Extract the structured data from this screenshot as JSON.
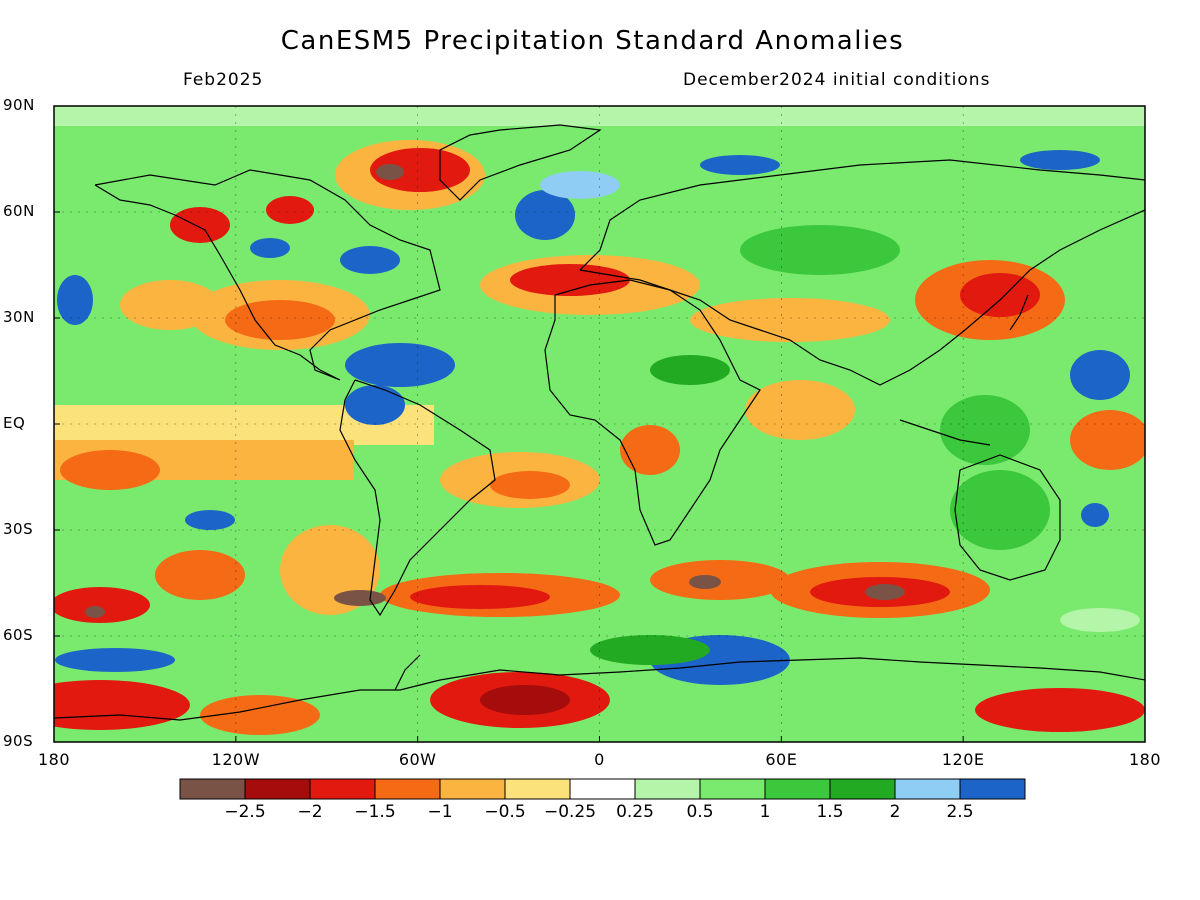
{
  "header": {
    "title": "CanESM5 Precipitation Standard Anomalies",
    "valid_month": "Feb2025",
    "init_conditions": "December2024 initial conditions"
  },
  "axes": {
    "lat_ticks": [
      "90N",
      "60N",
      "30N",
      "EQ",
      "30S",
      "60S",
      "90S"
    ],
    "lat_values": [
      90,
      60,
      30,
      0,
      -30,
      -60,
      -90
    ],
    "lon_ticks": [
      "180",
      "120W",
      "60W",
      "0",
      "60E",
      "120E",
      "180"
    ],
    "lon_values": [
      -180,
      -120,
      -60,
      0,
      60,
      120,
      180
    ]
  },
  "colorbar": {
    "colors": [
      "#7a5347",
      "#a50c0c",
      "#e1190f",
      "#f56a14",
      "#fbb440",
      "#fce27a",
      "#ffffff",
      "#b4f5aa",
      "#7aea6e",
      "#3cc83c",
      "#22aa22",
      "#8fcdf5",
      "#1c64c8"
    ],
    "labels": [
      "-2.5",
      "-2",
      "-1.5",
      "-1",
      "-0.5",
      "-0.25",
      "0.25",
      "0.5",
      "1",
      "1.5",
      "2",
      "2.5"
    ]
  }
}
